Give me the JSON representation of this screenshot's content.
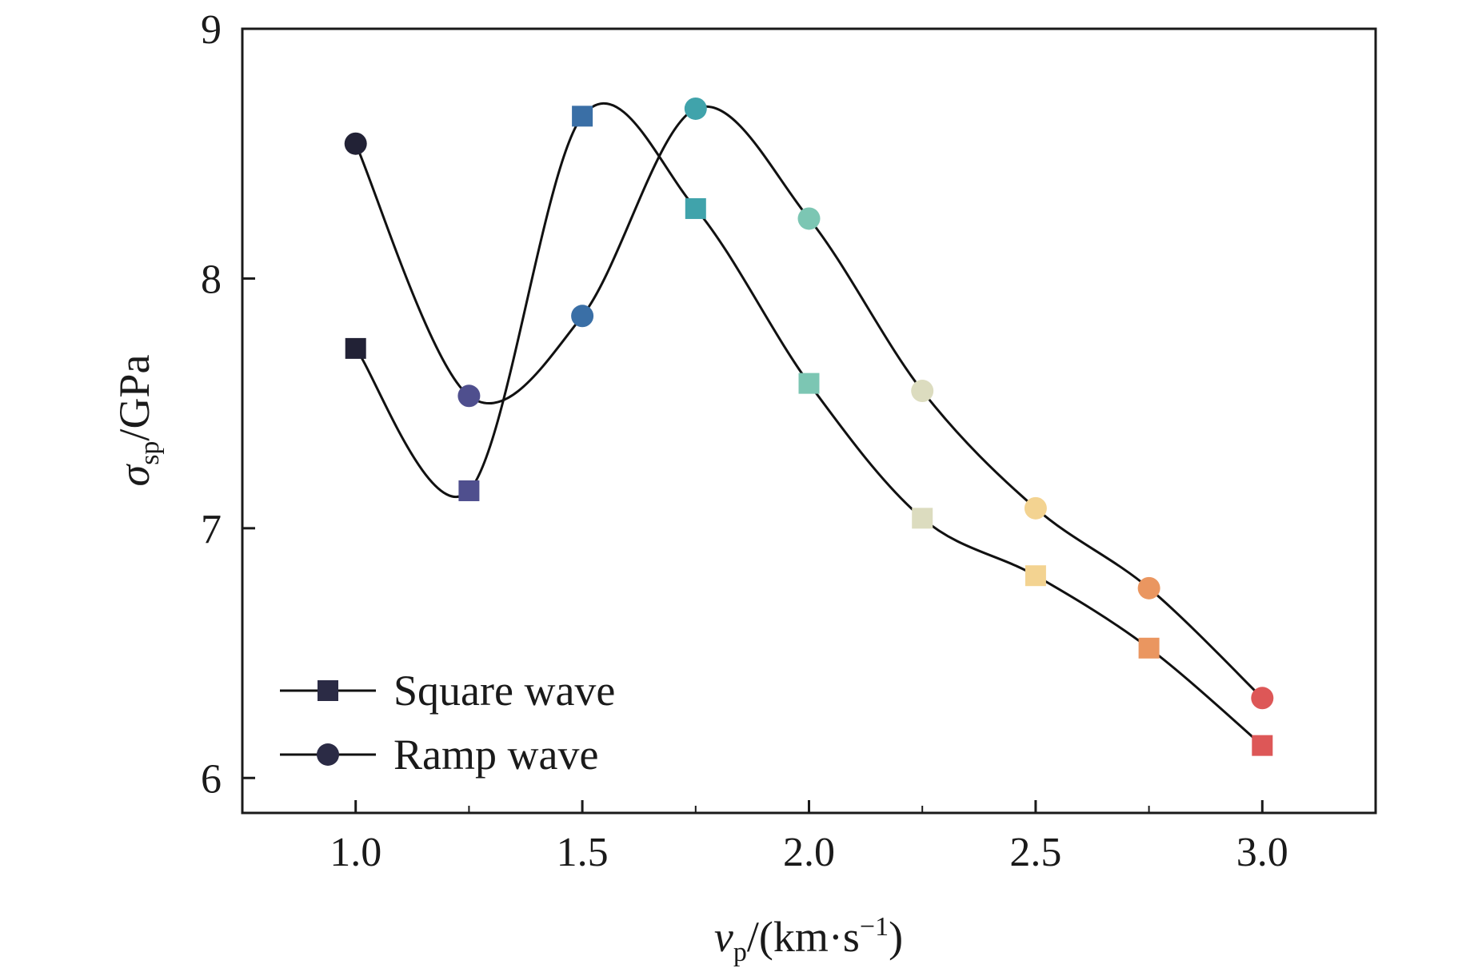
{
  "chart_data": {
    "type": "line",
    "title": "",
    "xlabel": {
      "main": "v",
      "sub": "p",
      "rest": "/(km·s",
      "sup": "−1",
      "end": ")"
    },
    "ylabel": {
      "main": "σ",
      "sub": "sp",
      "rest": "/GPa"
    },
    "xlim": [
      0.75,
      3.25
    ],
    "ylim": [
      5.86,
      9.0
    ],
    "x": [
      1.0,
      1.25,
      1.5,
      1.75,
      2.0,
      2.25,
      2.5,
      2.75,
      3.0
    ],
    "x_tick_values": [
      1.0,
      1.5,
      2.0,
      2.5,
      3.0
    ],
    "x_tick_labels": [
      "1.0",
      "1.5",
      "2.0",
      "2.5",
      "3.0"
    ],
    "x_minor_ticks": [
      1.25,
      1.75,
      2.25,
      2.75
    ],
    "y_tick_values": [
      6,
      7,
      8,
      9
    ],
    "y_tick_labels": [
      "6",
      "7",
      "8",
      "9"
    ],
    "grid": false,
    "legend_position": "bottom-left",
    "point_colors": [
      "#222236",
      "#4f4f8e",
      "#3a6fa6",
      "#40a3ab",
      "#7cc6b3",
      "#dcdcbf",
      "#f3d391",
      "#ea9660",
      "#dd5757"
    ],
    "series": [
      {
        "name": "Square wave",
        "marker": "square",
        "values": [
          7.72,
          7.15,
          8.65,
          8.28,
          7.58,
          7.04,
          6.81,
          6.52,
          6.13
        ]
      },
      {
        "name": "Ramp wave",
        "marker": "circle",
        "values": [
          8.54,
          7.53,
          7.85,
          8.68,
          8.24,
          7.55,
          7.08,
          6.76,
          6.32
        ]
      }
    ],
    "legend_marker_color": "#2b2b45",
    "line_color": "#111111"
  }
}
